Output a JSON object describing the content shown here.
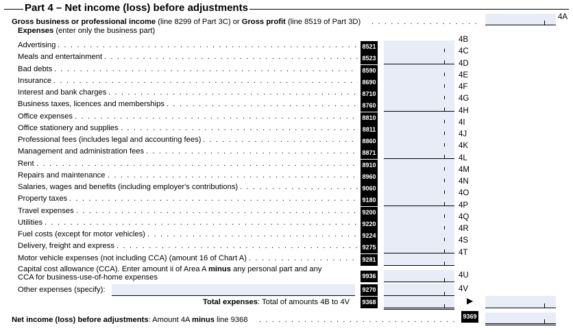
{
  "part_title": "Part 4 – Net income (loss) before adjustments",
  "gross": {
    "b1": "Gross business or professional income",
    "t1": " (line 8299 of Part 3C) or ",
    "b2": "Gross profit",
    "t2": " (line 8519 of Part 3D)",
    "line_id": "4A"
  },
  "expenses_heading": {
    "bold": "Expenses",
    "note": " (enter only the business part)"
  },
  "expenses": [
    {
      "label": "Advertising",
      "code": "8521",
      "line_id": "4B"
    },
    {
      "label": "Meals and entertainment",
      "code": "8523",
      "line_id": "4C"
    },
    {
      "label": "Bad debts",
      "code": "8590",
      "line_id": "4D"
    },
    {
      "label": "Insurance",
      "code": "8690",
      "line_id": "4E"
    },
    {
      "label": "Interest and bank charges",
      "code": "8710",
      "line_id": "4F"
    },
    {
      "label": "Business taxes, licences and memberships",
      "code": "8760",
      "line_id": "4G"
    },
    {
      "label": "Office expenses",
      "code": "8810",
      "line_id": "4H"
    },
    {
      "label": "Office stationery and supplies",
      "code": "8811",
      "line_id": "4I"
    },
    {
      "label": "Professional fees (includes legal and accounting fees)",
      "code": "8860",
      "line_id": "4J"
    },
    {
      "label": "Management and administration fees",
      "code": "8871",
      "line_id": "4K"
    },
    {
      "label": "Rent",
      "code": "8910",
      "line_id": "4L"
    },
    {
      "label": "Repairs and maintenance",
      "code": "8960",
      "line_id": "4M"
    },
    {
      "label": "Salaries, wages and benefits (including employer's contributions)",
      "code": "9060",
      "line_id": "4N"
    },
    {
      "label": "Property taxes",
      "code": "9180",
      "line_id": "4O"
    },
    {
      "label": "Travel expenses",
      "code": "9200",
      "line_id": "4P"
    },
    {
      "label": "Utilities",
      "code": "9220",
      "line_id": "4Q"
    },
    {
      "label": "Fuel costs (except for motor vehicles)",
      "code": "9224",
      "line_id": "4R"
    },
    {
      "label": "Delivery, freight and express",
      "code": "9275",
      "line_id": "4S"
    },
    {
      "label": "Motor vehicle expenses (not including CCA) (amount 16 of Chart A)",
      "code": "9281",
      "line_id": "4T"
    }
  ],
  "cca": {
    "l1a": "Capital cost allowance (CCA). Enter amount ii of Area A ",
    "l1b": "minus",
    "l1c": " any personal part and any",
    "l2": "CCA for business-use-of-home expenses",
    "code": "9936",
    "line_id": "4U"
  },
  "other": {
    "label": "Other expenses (specify):",
    "code": "9270",
    "line_id": "4V"
  },
  "total": {
    "bold": "Total expenses",
    "rest": ": Total of amounts 4B to 4V",
    "code": "9368",
    "arrow": "▶"
  },
  "net": {
    "b": "Net income (loss) before adjustments",
    "t1": ": Amount 4A ",
    "minus": "minus",
    "t2": " line 9368",
    "code": "9369"
  }
}
